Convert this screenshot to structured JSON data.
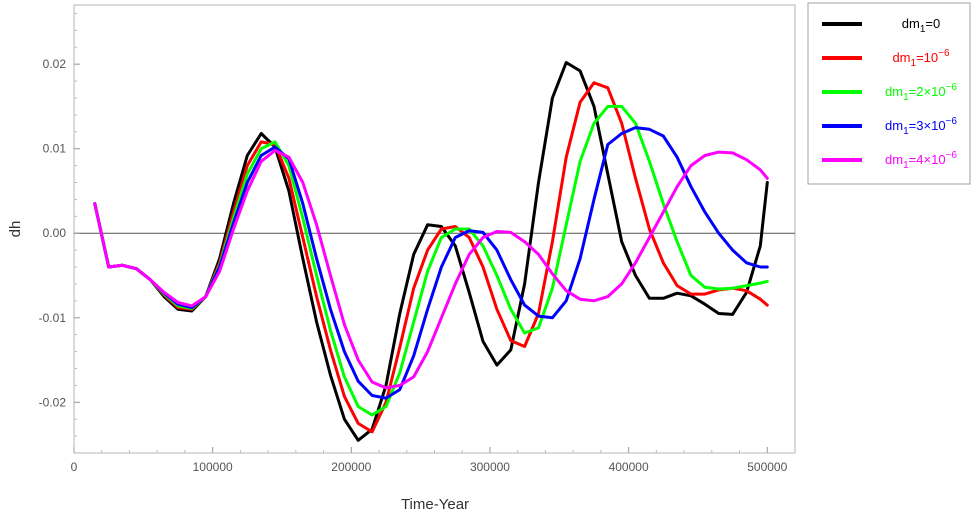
{
  "chart_data": {
    "type": "line",
    "xlabel": "Time-Year",
    "ylabel": "dh",
    "xlim": [
      0,
      520000
    ],
    "ylim": [
      -0.026,
      0.027
    ],
    "grid": false,
    "legend_position": "right",
    "x_ticks": [
      {
        "value": 0,
        "label": "0"
      },
      {
        "value": 100000,
        "label": "100000"
      },
      {
        "value": 200000,
        "label": "200000"
      },
      {
        "value": 300000,
        "label": "300000"
      },
      {
        "value": 400000,
        "label": "400000"
      },
      {
        "value": 500000,
        "label": "500000"
      }
    ],
    "y_ticks": [
      {
        "value": 0.02,
        "label": "0.02"
      },
      {
        "value": 0.01,
        "label": "0.01"
      },
      {
        "value": 0.0,
        "label": "0.00"
      },
      {
        "value": -0.01,
        "label": "-0.01"
      },
      {
        "value": -0.02,
        "label": "-0.02"
      }
    ],
    "series": [
      {
        "name": "dm1=0",
        "legend_base": "dm",
        "legend_sub": "1",
        "legend_rest": "=0",
        "legend_sup": "",
        "color": "#000000",
        "x": [
          15000,
          25000,
          35000,
          45000,
          55000,
          65000,
          75000,
          85000,
          95000,
          105000,
          115000,
          125000,
          135000,
          145000,
          155000,
          165000,
          175000,
          185000,
          195000,
          205000,
          215000,
          225000,
          235000,
          245000,
          255000,
          265000,
          275000,
          285000,
          295000,
          305000,
          315000,
          325000,
          335000,
          345000,
          355000,
          365000,
          375000,
          385000,
          395000,
          405000,
          415000,
          425000,
          435000,
          445000,
          455000,
          465000,
          475000,
          485000,
          495000,
          500000
        ],
        "y": [
          0.0035,
          -0.004,
          -0.0038,
          -0.0042,
          -0.0055,
          -0.0075,
          -0.009,
          -0.0092,
          -0.0075,
          -0.003,
          0.0035,
          0.0092,
          0.0118,
          0.0102,
          0.005,
          -0.003,
          -0.0105,
          -0.0168,
          -0.022,
          -0.0245,
          -0.0232,
          -0.018,
          -0.0095,
          -0.0025,
          0.001,
          0.0008,
          -0.0015,
          -0.007,
          -0.0128,
          -0.0156,
          -0.0138,
          -0.006,
          0.006,
          0.016,
          0.0202,
          0.0192,
          0.015,
          0.007,
          -0.001,
          -0.005,
          -0.0077,
          -0.0077,
          -0.0071,
          -0.0074,
          -0.0084,
          -0.0095,
          -0.0096,
          -0.007,
          -0.0015,
          0.006
        ]
      },
      {
        "name": "dm1=10-6",
        "legend_base": "dm",
        "legend_sub": "1",
        "legend_rest": "=10",
        "legend_sup": "−6",
        "color": "#ff0000",
        "x": [
          15000,
          25000,
          35000,
          45000,
          55000,
          65000,
          75000,
          85000,
          95000,
          105000,
          115000,
          125000,
          135000,
          145000,
          155000,
          165000,
          175000,
          185000,
          195000,
          205000,
          215000,
          225000,
          235000,
          245000,
          255000,
          265000,
          275000,
          285000,
          295000,
          305000,
          315000,
          325000,
          335000,
          345000,
          355000,
          365000,
          375000,
          385000,
          395000,
          405000,
          415000,
          425000,
          435000,
          445000,
          455000,
          465000,
          475000,
          485000,
          495000,
          500000
        ],
        "y": [
          0.0035,
          -0.004,
          -0.0038,
          -0.0042,
          -0.0055,
          -0.0073,
          -0.0088,
          -0.009,
          -0.0075,
          -0.0035,
          0.0025,
          0.008,
          0.0108,
          0.0105,
          0.0065,
          -0.0005,
          -0.0075,
          -0.0138,
          -0.0193,
          -0.0225,
          -0.0235,
          -0.02,
          -0.0135,
          -0.0065,
          -0.002,
          0.0005,
          0.0008,
          -0.0005,
          -0.004,
          -0.009,
          -0.0127,
          -0.0134,
          -0.0095,
          -0.001,
          0.009,
          0.0155,
          0.0178,
          0.0172,
          0.013,
          0.0065,
          0.0005,
          -0.0035,
          -0.0062,
          -0.0072,
          -0.0072,
          -0.0067,
          -0.0065,
          -0.0068,
          -0.0078,
          -0.0085
        ]
      },
      {
        "name": "dm1=2×10-6",
        "legend_base": "dm",
        "legend_sub": "1",
        "legend_rest": "=2×10",
        "legend_sup": "−6",
        "color": "#00ff00",
        "x": [
          15000,
          25000,
          35000,
          45000,
          55000,
          65000,
          75000,
          85000,
          95000,
          105000,
          115000,
          125000,
          135000,
          145000,
          155000,
          165000,
          175000,
          185000,
          195000,
          205000,
          215000,
          225000,
          235000,
          245000,
          255000,
          265000,
          275000,
          285000,
          295000,
          305000,
          315000,
          325000,
          335000,
          345000,
          355000,
          365000,
          375000,
          385000,
          395000,
          405000,
          415000,
          425000,
          435000,
          445000,
          455000,
          465000,
          475000,
          485000,
          495000,
          500000
        ],
        "y": [
          0.0035,
          -0.004,
          -0.0038,
          -0.0042,
          -0.0055,
          -0.0072,
          -0.0086,
          -0.0089,
          -0.0075,
          -0.0038,
          0.0018,
          0.007,
          0.01,
          0.0108,
          0.008,
          0.0018,
          -0.005,
          -0.0115,
          -0.017,
          -0.0205,
          -0.0215,
          -0.0205,
          -0.0165,
          -0.0105,
          -0.0045,
          -0.0005,
          0.0005,
          0.0005,
          -0.0015,
          -0.005,
          -0.009,
          -0.0118,
          -0.0112,
          -0.0065,
          0.001,
          0.0085,
          0.013,
          0.015,
          0.015,
          0.013,
          0.0085,
          0.0035,
          -0.001,
          -0.005,
          -0.0064,
          -0.0066,
          -0.0065,
          -0.0062,
          -0.0059,
          -0.0057
        ]
      },
      {
        "name": "dm1=3×10-6",
        "legend_base": "dm",
        "legend_sub": "1",
        "legend_rest": "=3×10",
        "legend_sup": "−6",
        "color": "#0000ff",
        "x": [
          15000,
          25000,
          35000,
          45000,
          55000,
          65000,
          75000,
          85000,
          95000,
          105000,
          115000,
          125000,
          135000,
          145000,
          155000,
          165000,
          175000,
          185000,
          195000,
          205000,
          215000,
          225000,
          235000,
          245000,
          255000,
          265000,
          275000,
          285000,
          295000,
          305000,
          315000,
          325000,
          335000,
          345000,
          355000,
          365000,
          375000,
          385000,
          395000,
          405000,
          415000,
          425000,
          435000,
          445000,
          455000,
          465000,
          475000,
          485000,
          495000,
          500000
        ],
        "y": [
          0.0035,
          -0.004,
          -0.0038,
          -0.0042,
          -0.0055,
          -0.0071,
          -0.0084,
          -0.0088,
          -0.0075,
          -0.004,
          0.0012,
          0.006,
          0.0092,
          0.0102,
          0.0088,
          0.0035,
          -0.003,
          -0.009,
          -0.014,
          -0.0175,
          -0.0192,
          -0.0195,
          -0.0185,
          -0.0145,
          -0.009,
          -0.004,
          -0.0005,
          0.0003,
          0.0001,
          -0.002,
          -0.0055,
          -0.0085,
          -0.0098,
          -0.01,
          -0.008,
          -0.003,
          0.004,
          0.0105,
          0.0118,
          0.0125,
          0.0123,
          0.0115,
          0.009,
          0.0055,
          0.0025,
          0.0,
          -0.002,
          -0.0035,
          -0.004,
          -0.004
        ]
      },
      {
        "name": "dm1=4×10-6",
        "legend_base": "dm",
        "legend_sub": "1",
        "legend_rest": "=4×10",
        "legend_sup": "−6",
        "color": "#ff00ff",
        "x": [
          15000,
          25000,
          35000,
          45000,
          55000,
          65000,
          75000,
          85000,
          95000,
          105000,
          115000,
          125000,
          135000,
          145000,
          155000,
          165000,
          175000,
          185000,
          195000,
          205000,
          215000,
          225000,
          235000,
          245000,
          255000,
          265000,
          275000,
          285000,
          295000,
          305000,
          315000,
          325000,
          335000,
          345000,
          355000,
          365000,
          375000,
          385000,
          395000,
          405000,
          415000,
          425000,
          435000,
          445000,
          455000,
          465000,
          475000,
          485000,
          495000,
          500000
        ],
        "y": [
          0.0035,
          -0.004,
          -0.0038,
          -0.0042,
          -0.0055,
          -0.007,
          -0.0082,
          -0.0086,
          -0.0075,
          -0.0045,
          0.0005,
          0.005,
          0.0085,
          0.0098,
          0.009,
          0.006,
          0.001,
          -0.005,
          -0.0108,
          -0.015,
          -0.0176,
          -0.0183,
          -0.018,
          -0.017,
          -0.014,
          -0.01,
          -0.006,
          -0.0025,
          -0.0005,
          0.0002,
          0.0001,
          -0.001,
          -0.0025,
          -0.0048,
          -0.0068,
          -0.0078,
          -0.008,
          -0.0075,
          -0.006,
          -0.0035,
          -0.0005,
          0.0025,
          0.0055,
          0.008,
          0.0092,
          0.0096,
          0.0095,
          0.0087,
          0.0075,
          0.0065
        ]
      }
    ]
  }
}
